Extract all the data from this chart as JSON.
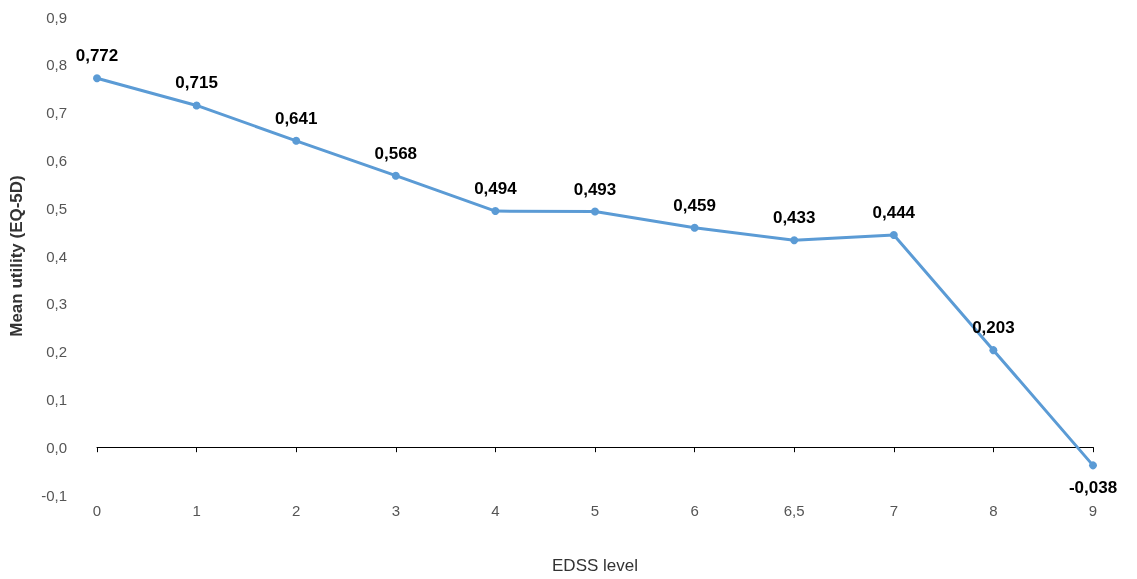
{
  "chart_data": {
    "type": "line",
    "xlabel": "EDSS level",
    "ylabel": "Mean utility (EQ-5D)",
    "categories": [
      "0",
      "1",
      "2",
      "3",
      "4",
      "5",
      "6",
      "6,5",
      "7",
      "8",
      "9"
    ],
    "series": [
      {
        "color": "#5b9bd5",
        "values": [
          0.772,
          0.715,
          0.641,
          0.568,
          0.494,
          0.493,
          0.459,
          0.433,
          0.444,
          0.203,
          -0.038
        ],
        "value_labels": [
          "0,772",
          "0,715",
          "0,641",
          "0,568",
          "0,494",
          "0,493",
          "0,459",
          "0,433",
          "0,444",
          "0,203",
          "-0,038"
        ]
      }
    ],
    "ylim": [
      -0.1,
      0.9
    ],
    "yticks": [
      {
        "value": -0.1,
        "label": "-0,1"
      },
      {
        "value": 0,
        "label": "0,0"
      },
      {
        "value": 0.1,
        "label": "0,1"
      },
      {
        "value": 0.2,
        "label": "0,2"
      },
      {
        "value": 0.3,
        "label": "0,3"
      },
      {
        "value": 0.4,
        "label": "0,4"
      },
      {
        "value": 0.5,
        "label": "0,5"
      },
      {
        "value": 0.6,
        "label": "0,6"
      },
      {
        "value": 0.7,
        "label": "0,7"
      },
      {
        "value": 0.8,
        "label": "0,8"
      },
      {
        "value": 0.9,
        "label": "0,9"
      }
    ],
    "marker": "circle",
    "line_style": "solid"
  }
}
